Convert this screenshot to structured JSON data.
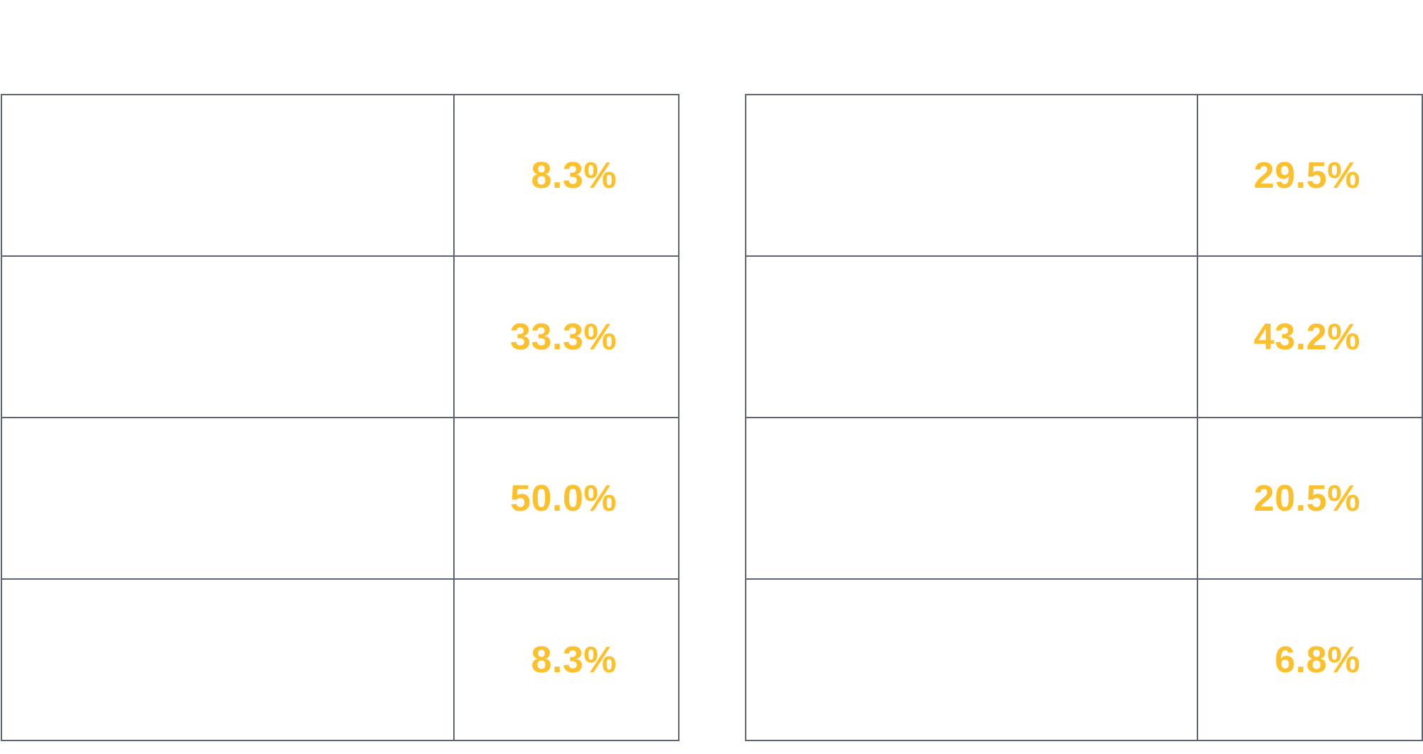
{
  "colors": {
    "value_text": "#fbc02d",
    "border": "#5d6670",
    "background": "#ffffff"
  },
  "tables": [
    {
      "rows": [
        {
          "label": "",
          "value": "8.3%"
        },
        {
          "label": "",
          "value": "33.3%"
        },
        {
          "label": "",
          "value": "50.0%"
        },
        {
          "label": "",
          "value": "8.3%"
        }
      ]
    },
    {
      "rows": [
        {
          "label": "",
          "value": "29.5%"
        },
        {
          "label": "",
          "value": "43.2%"
        },
        {
          "label": "",
          "value": "20.5%"
        },
        {
          "label": "",
          "value": "6.8%"
        }
      ]
    }
  ]
}
